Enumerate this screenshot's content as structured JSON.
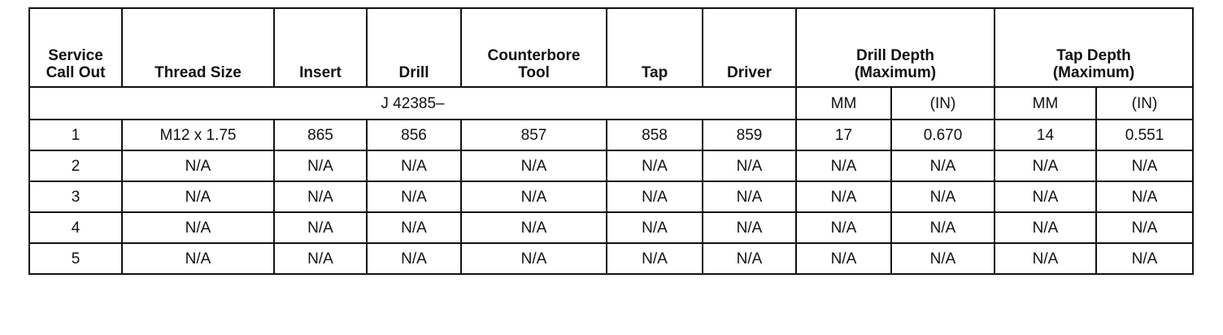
{
  "headers": {
    "service_call_out": "Service Call Out",
    "thread_size": "Thread Size",
    "insert": "Insert",
    "drill": "Drill",
    "counterbore_tool": "Counterbore Tool",
    "tap": "Tap",
    "driver": "Driver",
    "drill_depth": "Drill Depth (Maximum)",
    "tap_depth": "Tap Depth (Maximum)"
  },
  "subheader": {
    "tool_prefix": "J 42385–",
    "drill_mm": "MM",
    "drill_in": "(IN)",
    "tap_mm": "MM",
    "tap_in": "(IN)"
  },
  "rows": [
    [
      "1",
      "M12 x 1.75",
      "865",
      "856",
      "857",
      "858",
      "859",
      "17",
      "0.670",
      "14",
      "0.551"
    ],
    [
      "2",
      "N/A",
      "N/A",
      "N/A",
      "N/A",
      "N/A",
      "N/A",
      "N/A",
      "N/A",
      "N/A",
      "N/A"
    ],
    [
      "3",
      "N/A",
      "N/A",
      "N/A",
      "N/A",
      "N/A",
      "N/A",
      "N/A",
      "N/A",
      "N/A",
      "N/A"
    ],
    [
      "4",
      "N/A",
      "N/A",
      "N/A",
      "N/A",
      "N/A",
      "N/A",
      "N/A",
      "N/A",
      "N/A",
      "N/A"
    ],
    [
      "5",
      "N/A",
      "N/A",
      "N/A",
      "N/A",
      "N/A",
      "N/A",
      "N/A",
      "N/A",
      "N/A",
      "N/A"
    ]
  ]
}
